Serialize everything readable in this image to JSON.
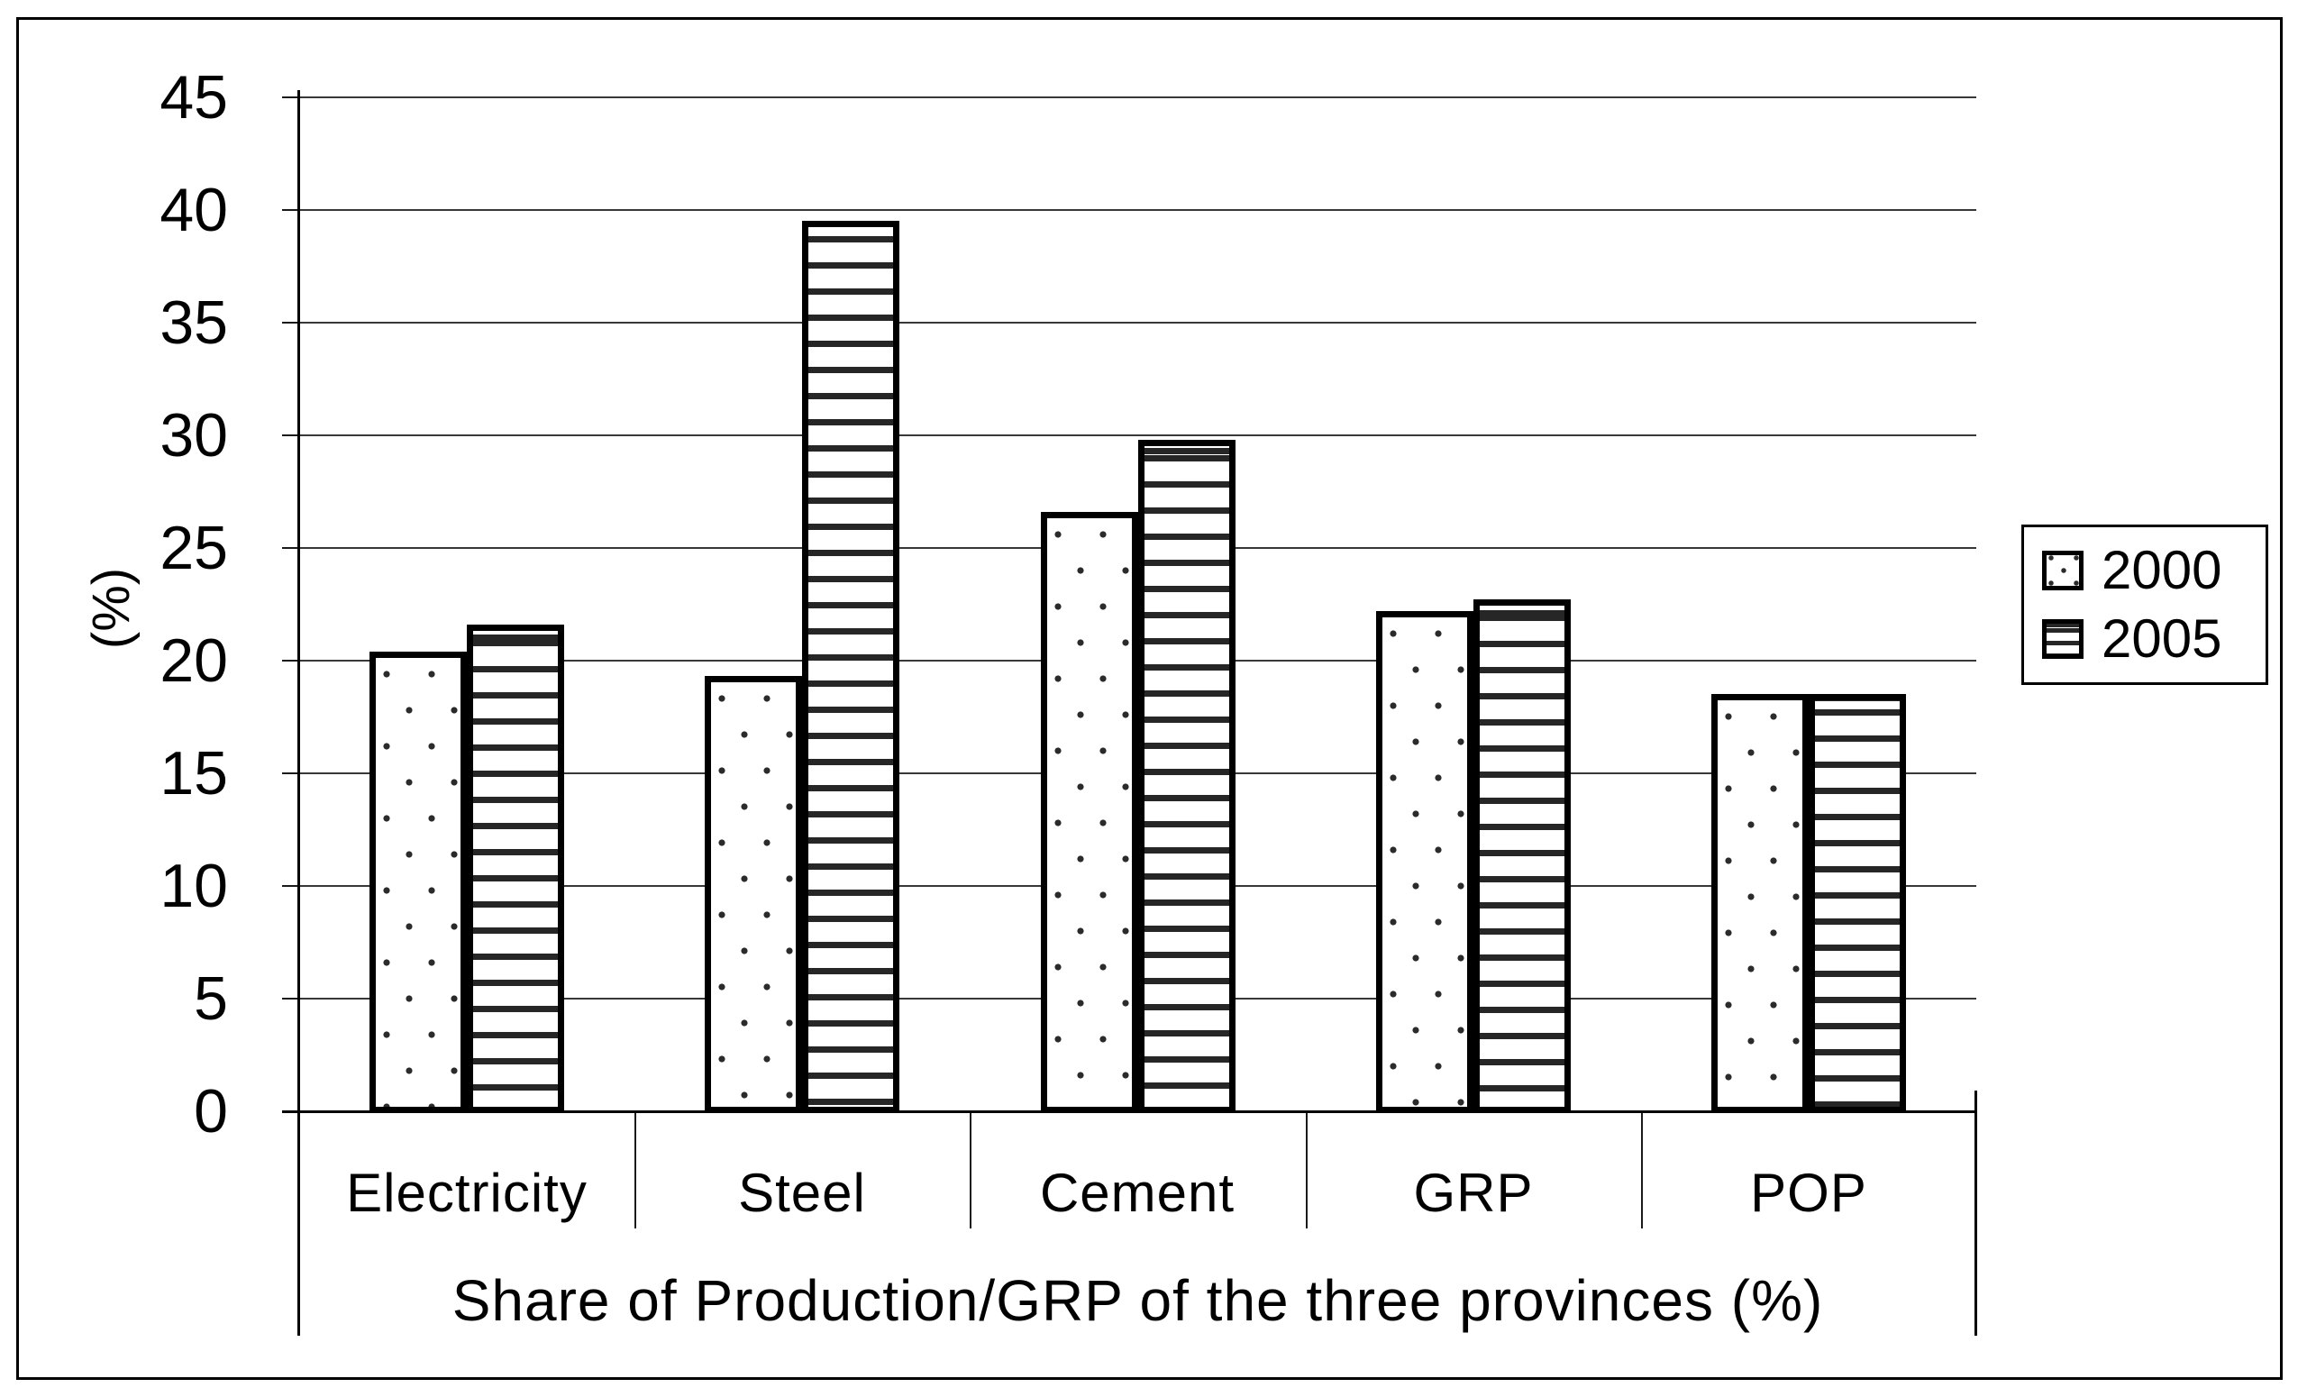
{
  "chart_data": {
    "type": "bar",
    "categories": [
      "Electricity",
      "Steel",
      "Cement",
      "GRP",
      "POP"
    ],
    "series": [
      {
        "name": "2000",
        "pattern": "dots",
        "values": [
          20.4,
          19.3,
          26.6,
          22.2,
          18.5
        ]
      },
      {
        "name": "2005",
        "pattern": "hlines",
        "values": [
          21.6,
          39.5,
          29.8,
          22.7,
          18.5
        ]
      }
    ],
    "title": "",
    "xlabel": "Share of Production/GRP of the three provinces (%)",
    "ylabel": "(%)",
    "ylim": [
      0,
      45
    ],
    "yticks": [
      0,
      5,
      10,
      15,
      20,
      25,
      30,
      35,
      40,
      45
    ],
    "grid": true,
    "legend_position": "right"
  },
  "legend": {
    "items": [
      {
        "label": "2000",
        "pattern": "dots"
      },
      {
        "label": "2005",
        "pattern": "hlines"
      }
    ]
  },
  "colors": {
    "ink": "#000000",
    "pattern_ink": "#2b2b2b",
    "background": "#ffffff"
  }
}
